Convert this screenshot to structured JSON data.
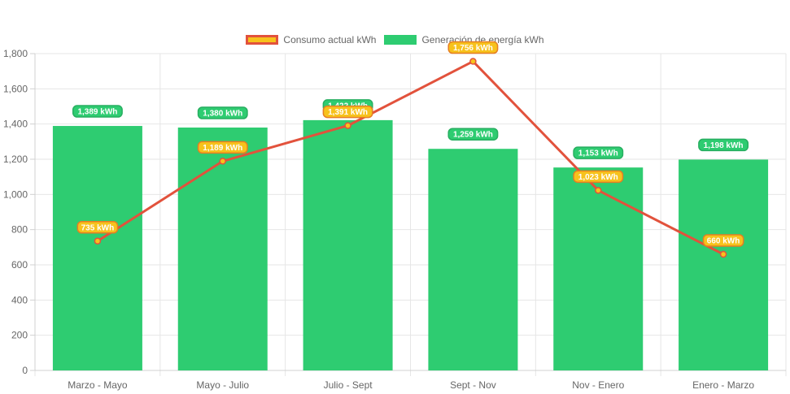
{
  "chart_data": {
    "type": "bar",
    "categories": [
      "Marzo - Mayo",
      "Mayo - Julio",
      "Julio - Sept",
      "Sept - Nov",
      "Nov - Enero",
      "Enero - Marzo"
    ],
    "series": [
      {
        "name": "Generación de energía kWh",
        "type": "bar",
        "color": "#2ecc71",
        "values": [
          1389,
          1380,
          1422,
          1259,
          1153,
          1198
        ],
        "labels": [
          "1,389 kWh",
          "1,380 kWh",
          "1,422 kWh",
          "1,259 kWh",
          "1,153 kWh",
          "1,198 kWh"
        ]
      },
      {
        "name": "Consumo actual kWh",
        "type": "line",
        "color": "#e2523c",
        "point_color": "#f7c21c",
        "values": [
          735,
          1189,
          1391,
          1756,
          1023,
          660
        ],
        "labels": [
          "735 kWh",
          "1,189 kWh",
          "1,391 kWh",
          "1,756 kWh",
          "1,023 kWh",
          "660 kWh"
        ]
      }
    ],
    "ylim": [
      0,
      1800
    ],
    "yticks": [
      "0",
      "200",
      "400",
      "600",
      "800",
      "1,000",
      "1,200",
      "1,400",
      "1,600",
      "1,800"
    ],
    "grid": true,
    "legend_position": "top"
  }
}
